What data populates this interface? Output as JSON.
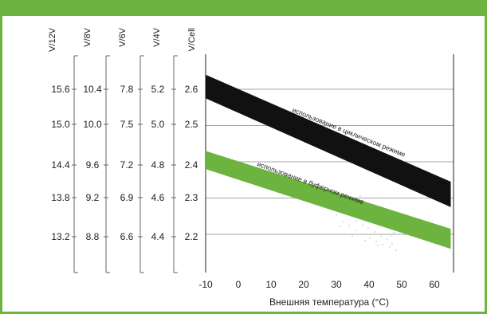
{
  "chart_data": {
    "type": "line",
    "title": "",
    "xlabel": "Внешняя температура  (°C)",
    "x_ticks": [
      "-10",
      "0",
      "10",
      "20",
      "30",
      "40",
      "50",
      "60"
    ],
    "xlim": [
      -10,
      65
    ],
    "ylim": [
      2.05,
      2.7
    ],
    "y_axes": [
      {
        "label": "V/12V",
        "ticks": [
          "15.6",
          "15.0",
          "14.4",
          "13.8",
          "13.2"
        ]
      },
      {
        "label": "V/8V",
        "ticks": [
          "10.4",
          "10.0",
          "9.6",
          "9.2",
          "8.8"
        ]
      },
      {
        "label": "V/6V",
        "ticks": [
          "7.8",
          "7.5",
          "7.2",
          "6.9",
          "6.6"
        ]
      },
      {
        "label": "V/4V",
        "ticks": [
          "5.2",
          "5.0",
          "4.8",
          "4.6",
          "4.4"
        ]
      },
      {
        "label": "V/Cell",
        "ticks": [
          "2.6",
          "2.5",
          "2.4",
          "2.3",
          "2.2"
        ]
      }
    ],
    "gridlines": [
      2.6,
      2.5,
      2.4,
      2.3,
      2.2
    ],
    "series": [
      {
        "name": "использование в циклическом режиме",
        "color": "#111111",
        "upper": [
          [
            -10,
            2.64
          ],
          [
            65,
            2.345
          ]
        ],
        "lower": [
          [
            -10,
            2.575
          ],
          [
            65,
            2.275
          ]
        ]
      },
      {
        "name": "использование в буферном режиме",
        "color": "#6cb33f",
        "upper": [
          [
            -10,
            2.43
          ],
          [
            65,
            2.215
          ]
        ],
        "lower": [
          [
            -10,
            2.38
          ],
          [
            65,
            2.16
          ]
        ]
      }
    ]
  },
  "colors": {
    "accent": "#6cb33f"
  }
}
